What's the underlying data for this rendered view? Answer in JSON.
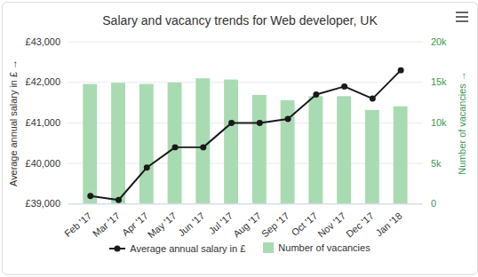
{
  "chart_data": {
    "type": "bar_line",
    "title": "Salary and vacancy trends for Web developer, UK",
    "categories": [
      "Feb '17",
      "Mar '17",
      "Apr '17",
      "May '17",
      "Jun '17",
      "Jul '17",
      "Aug '17",
      "Sep '17",
      "Oct '17",
      "Nov '17",
      "Dec '17",
      "Jan '18"
    ],
    "series": [
      {
        "name": "Average annual salary in £",
        "type": "line",
        "color": "#1a1a1a",
        "marker": "circle",
        "values": [
          39200,
          39100,
          39900,
          40400,
          40400,
          41000,
          41000,
          41100,
          41700,
          41900,
          41600,
          42300
        ]
      },
      {
        "name": "Number of vacancies",
        "type": "bar",
        "color": "#a9dbb2",
        "axis": "y2",
        "values": [
          14750,
          14900,
          14750,
          14950,
          15450,
          15300,
          13400,
          12750,
          13250,
          13250,
          11550,
          12000
        ]
      }
    ],
    "ylabel": "Average annual salary in £",
    "y2label": "Number of vacancies",
    "ylim": [
      39000,
      43000
    ],
    "yticks": [
      {
        "value": 39000,
        "label": "£39,000"
      },
      {
        "value": 40000,
        "label": "£40,000"
      },
      {
        "value": 41000,
        "label": "£41,000"
      },
      {
        "value": 42000,
        "label": "£42,000"
      },
      {
        "value": 43000,
        "label": "£43,000"
      }
    ],
    "y2lim": [
      0,
      20000
    ],
    "y2ticks": [
      {
        "value": 0,
        "label": "0"
      },
      {
        "value": 5000,
        "label": "5k"
      },
      {
        "value": 10000,
        "label": "10k"
      },
      {
        "value": 15000,
        "label": "15k"
      },
      {
        "value": 20000,
        "label": "20k"
      }
    ],
    "grid": true,
    "legend": "bottom"
  }
}
